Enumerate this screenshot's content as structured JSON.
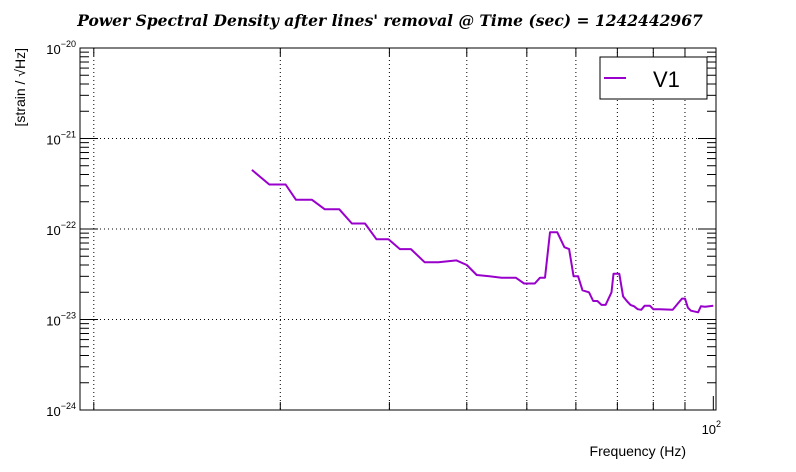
{
  "chart_data": {
    "type": "line",
    "title": "Power Spectral Density after lines' removal @ Time (sec) = 1242442967",
    "xlabel": "Frequency (Hz)",
    "ylabel": "[strain / √Hz]",
    "x_scale": "log",
    "y_scale": "log",
    "xlim": [
      9.5,
      101
    ],
    "ylim": [
      1e-24,
      1e-20
    ],
    "grid": true,
    "legend_position": "top-right",
    "x_tick_labels": [
      {
        "value": 100,
        "base": "10",
        "exp": "2"
      }
    ],
    "y_tick_labels": [
      {
        "value": 1e-20,
        "base": "10",
        "exp": "−20"
      },
      {
        "value": 1e-21,
        "base": "10",
        "exp": "−21"
      },
      {
        "value": 1e-22,
        "base": "10",
        "exp": "−22"
      },
      {
        "value": 1e-23,
        "base": "10",
        "exp": "−23"
      },
      {
        "value": 1e-24,
        "base": "10",
        "exp": "−24"
      }
    ],
    "x_minor_ticks": [
      10,
      20,
      30,
      40,
      50,
      60,
      70,
      80,
      90
    ],
    "y_minor_multipliers": [
      2,
      3,
      4,
      5,
      6,
      7,
      8,
      9
    ],
    "series": [
      {
        "name": "V1",
        "color": "#9900cc",
        "points": [
          [
            18.0,
            4.5e-22
          ],
          [
            19.2,
            3.1e-22
          ],
          [
            20.4,
            3.1e-22
          ],
          [
            21.2,
            2.1e-22
          ],
          [
            22.5,
            2.1e-22
          ],
          [
            23.6,
            1.65e-22
          ],
          [
            24.9,
            1.65e-22
          ],
          [
            26.1,
            1.15e-22
          ],
          [
            27.4,
            1.15e-22
          ],
          [
            28.6,
            7.7e-23
          ],
          [
            29.9,
            7.7e-23
          ],
          [
            31.2,
            6e-23
          ],
          [
            32.5,
            6e-23
          ],
          [
            34.2,
            4.3e-23
          ],
          [
            36.0,
            4.3e-23
          ],
          [
            38.5,
            4.5e-23
          ],
          [
            40.0,
            4e-23
          ],
          [
            41.5,
            3.1e-23
          ],
          [
            43.5,
            3e-23
          ],
          [
            45.5,
            2.9e-23
          ],
          [
            48.0,
            2.9e-23
          ],
          [
            49.5,
            2.5e-23
          ],
          [
            51.5,
            2.5e-23
          ],
          [
            52.5,
            2.9e-23
          ],
          [
            53.5,
            2.9e-23
          ],
          [
            54.5,
            9.2e-23
          ],
          [
            56.0,
            9.2e-23
          ],
          [
            57.5,
            6.3e-23
          ],
          [
            58.5,
            6e-23
          ],
          [
            59.5,
            3e-23
          ],
          [
            60.5,
            3e-23
          ],
          [
            61.5,
            2.1e-23
          ],
          [
            63.0,
            2e-23
          ],
          [
            64.0,
            1.6e-23
          ],
          [
            65.0,
            1.6e-23
          ],
          [
            66.0,
            1.45e-23
          ],
          [
            67.0,
            1.45e-23
          ],
          [
            68.5,
            2e-23
          ],
          [
            69.0,
            3.2e-23
          ],
          [
            70.5,
            3.2e-23
          ],
          [
            71.5,
            1.8e-23
          ],
          [
            72.5,
            1.6e-23
          ],
          [
            73.5,
            1.45e-23
          ],
          [
            74.5,
            1.4e-23
          ],
          [
            75.5,
            1.3e-23
          ],
          [
            76.5,
            1.28e-23
          ],
          [
            77.5,
            1.42e-23
          ],
          [
            79.0,
            1.42e-23
          ],
          [
            80.0,
            1.3e-23
          ],
          [
            82.0,
            1.3e-23
          ],
          [
            86.0,
            1.28e-23
          ],
          [
            88.0,
            1.55e-23
          ],
          [
            89.0,
            1.7e-23
          ],
          [
            90.0,
            1.7e-23
          ],
          [
            91.0,
            1.35e-23
          ],
          [
            92.0,
            1.25e-23
          ],
          [
            94.5,
            1.2e-23
          ],
          [
            95.5,
            1.4e-23
          ],
          [
            97.0,
            1.38e-23
          ],
          [
            100.0,
            1.42e-23
          ]
        ]
      }
    ]
  }
}
